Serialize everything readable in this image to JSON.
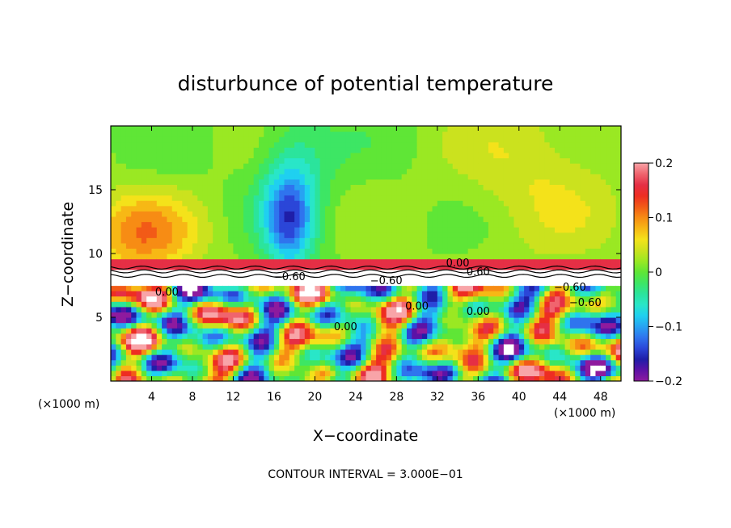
{
  "chart_data": {
    "type": "heatmap",
    "title": "disturbunce of potential temperature",
    "xlabel": "X−coordinate",
    "ylabel": "Z−coordinate",
    "x_unit": "(×1000 m)",
    "z_unit": "(×1000 m)",
    "xlim": [
      0,
      50
    ],
    "ylim": [
      0,
      20
    ],
    "x_ticks": [
      4,
      8,
      12,
      16,
      20,
      24,
      28,
      32,
      36,
      40,
      44,
      48
    ],
    "x_tick_labels": [
      "4",
      "8",
      "12",
      "16",
      "20",
      "24",
      "28",
      "32",
      "36",
      "40",
      "44",
      "48"
    ],
    "y_ticks": [
      5,
      10,
      15
    ],
    "y_tick_labels": [
      "5",
      "10",
      "15"
    ],
    "colorbar": {
      "range": [
        -0.2,
        0.2
      ],
      "ticks": [
        0.2,
        0.1,
        0,
        -0.1,
        -0.2
      ],
      "tick_labels": [
        "0.2",
        "0.1",
        "0",
        "−0.1",
        "−0.2"
      ],
      "colors": [
        "#8e1a9e",
        "#5c12a6",
        "#1f1ea8",
        "#2b46d8",
        "#2f74ee",
        "#27a3f2",
        "#1fd0f0",
        "#29e6c8",
        "#2be49c",
        "#3de664",
        "#5fe636",
        "#9ae823",
        "#cbe21e",
        "#f4e21a",
        "#f7b815",
        "#f78c14",
        "#f25a17",
        "#ee2d22",
        "#e52f45",
        "#f0646e",
        "#f8a4a8"
      ]
    },
    "contour_labels": [
      {
        "text": "0.00",
        "x": 34,
        "z": 9.0
      },
      {
        "text": "0.60",
        "x": 36,
        "z": 8.3
      },
      {
        "text": "−0.60",
        "x": 17.5,
        "z": 7.9
      },
      {
        "text": "−0.60",
        "x": 27,
        "z": 7.6
      },
      {
        "text": "0.00",
        "x": 5.5,
        "z": 6.7
      },
      {
        "text": "0.00",
        "x": 30,
        "z": 5.6
      },
      {
        "text": "0.00",
        "x": 36,
        "z": 5.2
      },
      {
        "text": "0.00",
        "x": 23,
        "z": 4.0
      },
      {
        "text": "−0.60",
        "x": 45,
        "z": 7.1
      },
      {
        "text": "−0.60",
        "x": 46.5,
        "z": 5.9
      }
    ],
    "contour_interval_text": "CONTOUR INTERVAL = 3.000E−01"
  }
}
